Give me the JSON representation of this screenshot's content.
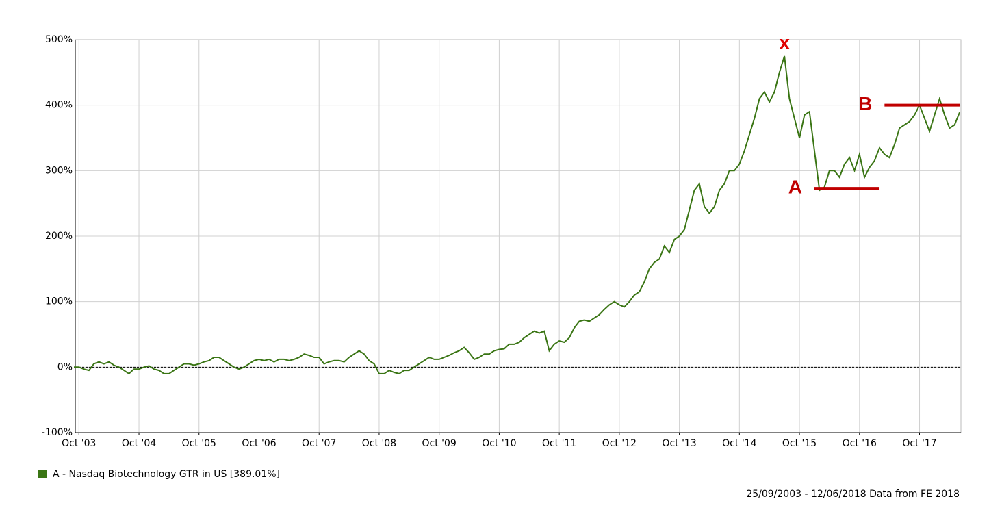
{
  "chart_data": {
    "type": "line",
    "x": [
      "2003-09",
      "2003-10",
      "2003-11",
      "2003-12",
      "2004-01",
      "2004-02",
      "2004-03",
      "2004-04",
      "2004-05",
      "2004-06",
      "2004-07",
      "2004-08",
      "2004-09",
      "2004-10",
      "2004-11",
      "2004-12",
      "2005-01",
      "2005-02",
      "2005-03",
      "2005-04",
      "2005-05",
      "2005-06",
      "2005-07",
      "2005-08",
      "2005-09",
      "2005-10",
      "2005-11",
      "2005-12",
      "2006-01",
      "2006-02",
      "2006-03",
      "2006-04",
      "2006-05",
      "2006-06",
      "2006-07",
      "2006-08",
      "2006-09",
      "2006-10",
      "2006-11",
      "2006-12",
      "2007-01",
      "2007-02",
      "2007-03",
      "2007-04",
      "2007-05",
      "2007-06",
      "2007-07",
      "2007-08",
      "2007-09",
      "2007-10",
      "2007-11",
      "2007-12",
      "2008-01",
      "2008-02",
      "2008-03",
      "2008-04",
      "2008-05",
      "2008-06",
      "2008-07",
      "2008-08",
      "2008-09",
      "2008-10",
      "2008-11",
      "2008-12",
      "2009-01",
      "2009-02",
      "2009-03",
      "2009-04",
      "2009-05",
      "2009-06",
      "2009-07",
      "2009-08",
      "2009-09",
      "2009-10",
      "2009-11",
      "2009-12",
      "2010-01",
      "2010-02",
      "2010-03",
      "2010-04",
      "2010-05",
      "2010-06",
      "2010-07",
      "2010-08",
      "2010-09",
      "2010-10",
      "2010-11",
      "2010-12",
      "2011-01",
      "2011-02",
      "2011-03",
      "2011-04",
      "2011-05",
      "2011-06",
      "2011-07",
      "2011-08",
      "2011-09",
      "2011-10",
      "2011-11",
      "2011-12",
      "2012-01",
      "2012-02",
      "2012-03",
      "2012-04",
      "2012-05",
      "2012-06",
      "2012-07",
      "2012-08",
      "2012-09",
      "2012-10",
      "2012-11",
      "2012-12",
      "2013-01",
      "2013-02",
      "2013-03",
      "2013-04",
      "2013-05",
      "2013-06",
      "2013-07",
      "2013-08",
      "2013-09",
      "2013-10",
      "2013-11",
      "2013-12",
      "2014-01",
      "2014-02",
      "2014-03",
      "2014-04",
      "2014-05",
      "2014-06",
      "2014-07",
      "2014-08",
      "2014-09",
      "2014-10",
      "2014-11",
      "2014-12",
      "2015-01",
      "2015-02",
      "2015-03",
      "2015-04",
      "2015-05",
      "2015-06",
      "2015-07",
      "2015-08",
      "2015-09",
      "2015-10",
      "2015-11",
      "2015-12",
      "2016-01",
      "2016-02",
      "2016-03",
      "2016-04",
      "2016-05",
      "2016-06",
      "2016-07",
      "2016-08",
      "2016-09",
      "2016-10",
      "2016-11",
      "2016-12",
      "2017-01",
      "2017-02",
      "2017-03",
      "2017-04",
      "2017-05",
      "2017-06",
      "2017-07",
      "2017-08",
      "2017-09",
      "2017-10",
      "2017-11",
      "2017-12",
      "2018-01",
      "2018-02",
      "2018-03",
      "2018-04",
      "2018-05",
      "2018-06"
    ],
    "series": [
      {
        "name": "A - Nasdaq Biotechnology GTR in US [389.01%]",
        "color": "#3a7514",
        "values": [
          0,
          0,
          -3,
          -5,
          5,
          8,
          5,
          8,
          3,
          0,
          -5,
          -10,
          -3,
          -3,
          0,
          2,
          -3,
          -5,
          -10,
          -10,
          -5,
          0,
          5,
          5,
          3,
          5,
          8,
          10,
          15,
          15,
          10,
          5,
          0,
          -3,
          0,
          5,
          10,
          12,
          10,
          12,
          8,
          12,
          12,
          10,
          12,
          15,
          20,
          18,
          15,
          15,
          5,
          8,
          10,
          10,
          8,
          15,
          20,
          25,
          20,
          10,
          5,
          -10,
          -10,
          -5,
          -8,
          -10,
          -5,
          -5,
          0,
          5,
          10,
          15,
          12,
          12,
          15,
          18,
          22,
          25,
          30,
          22,
          12,
          15,
          20,
          20,
          25,
          27,
          28,
          35,
          35,
          38,
          45,
          50,
          55,
          52,
          55,
          25,
          35,
          40,
          38,
          45,
          60,
          70,
          72,
          70,
          75,
          80,
          88,
          95,
          100,
          95,
          92,
          100,
          110,
          115,
          130,
          150,
          160,
          165,
          185,
          175,
          195,
          200,
          210,
          240,
          270,
          280,
          245,
          235,
          245,
          270,
          280,
          300,
          300,
          310,
          330,
          355,
          380,
          410,
          420,
          405,
          420,
          450,
          475,
          410,
          380,
          350,
          385,
          390,
          330,
          270,
          275,
          300,
          300,
          290,
          310,
          320,
          300,
          325,
          290,
          305,
          315,
          335,
          325,
          320,
          340,
          365,
          370,
          375,
          385,
          400,
          380,
          360,
          385,
          410,
          385,
          365,
          370,
          389
        ]
      }
    ],
    "xlim": [
      "2003-09",
      "2018-06"
    ],
    "xticks": [
      {
        "value": "2003-10",
        "label": "Oct '03"
      },
      {
        "value": "2004-10",
        "label": "Oct '04"
      },
      {
        "value": "2005-10",
        "label": "Oct '05"
      },
      {
        "value": "2006-10",
        "label": "Oct '06"
      },
      {
        "value": "2007-10",
        "label": "Oct '07"
      },
      {
        "value": "2008-10",
        "label": "Oct '08"
      },
      {
        "value": "2009-10",
        "label": "Oct '09"
      },
      {
        "value": "2010-10",
        "label": "Oct '10"
      },
      {
        "value": "2011-10",
        "label": "Oct '11"
      },
      {
        "value": "2012-10",
        "label": "Oct '12"
      },
      {
        "value": "2013-10",
        "label": "Oct '13"
      },
      {
        "value": "2014-10",
        "label": "Oct '14"
      },
      {
        "value": "2015-10",
        "label": "Oct '15"
      },
      {
        "value": "2016-10",
        "label": "Oct '16"
      },
      {
        "value": "2017-10",
        "label": "Oct '17"
      }
    ],
    "ylim": [
      -100,
      500
    ],
    "yticks": [
      {
        "value": -100,
        "label": "-100%"
      },
      {
        "value": 0,
        "label": "0%"
      },
      {
        "value": 100,
        "label": "100%"
      },
      {
        "value": 200,
        "label": "200%"
      },
      {
        "value": 300,
        "label": "300%"
      },
      {
        "value": 400,
        "label": "400%"
      },
      {
        "value": 500,
        "label": "500%"
      }
    ],
    "grid": true,
    "legend": "bottom-left",
    "footnote": "25/09/2003 - 12/06/2018 Data from FE 2018",
    "annotations": [
      {
        "label": "x",
        "x": "2015-07",
        "y": 475,
        "color": "#e00000"
      },
      {
        "label": "A",
        "x": "2016-01",
        "x_end": "2017-02",
        "y": 273,
        "color": "#c00000"
      },
      {
        "label": "B",
        "x": "2017-03",
        "x_end": "2018-06",
        "y": 400,
        "color": "#c00000"
      }
    ]
  }
}
